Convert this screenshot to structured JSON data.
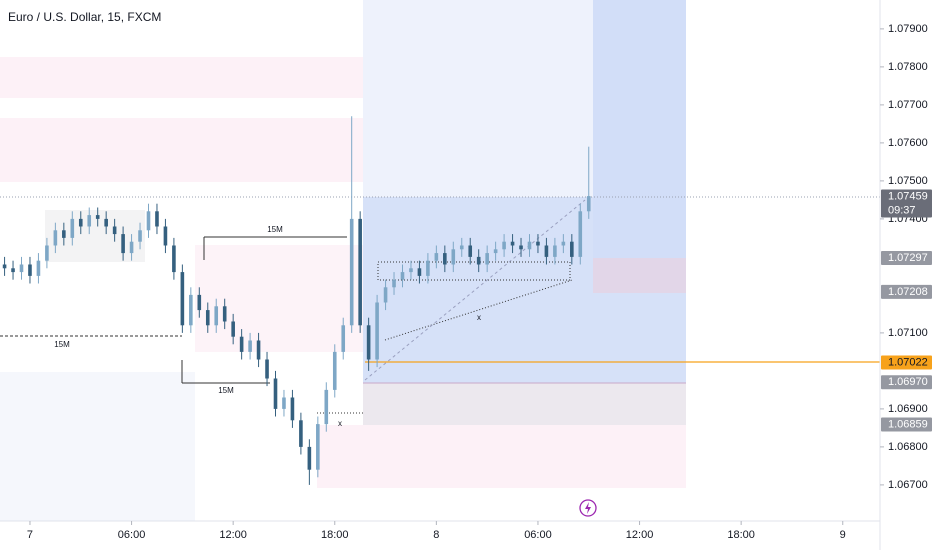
{
  "chart_data": {
    "type": "candlestick",
    "title": "Euro / U.S. Dollar, 15, FXCM",
    "x": [
      -1.5,
      -1,
      -0.5,
      0,
      0.5,
      1,
      1.5,
      2,
      2.5,
      3,
      3.5,
      4,
      4.5,
      5,
      5.5,
      6,
      6.5,
      7,
      7.5,
      8,
      8.5,
      9,
      9.5,
      10,
      10.5,
      11,
      11.5,
      12,
      12.5,
      13,
      13.5,
      14,
      14.5,
      15,
      15.5,
      16,
      16.5,
      17,
      17.5,
      18,
      18.5,
      19,
      19.5,
      20,
      20.5,
      21,
      21.5,
      22,
      22.5,
      23,
      23.5,
      24,
      24.5,
      25,
      25.5,
      26,
      26.5,
      27,
      27.5,
      28,
      28.5,
      29,
      29.5,
      30,
      30.5,
      31,
      31.5,
      32,
      32.5,
      33
    ],
    "open": [
      1.0728,
      1.0727,
      1.0726,
      1.0728,
      1.0725,
      1.0729,
      1.0733,
      1.0737,
      1.0735,
      1.074,
      1.0738,
      1.0741,
      1.074,
      1.0738,
      1.0736,
      1.0731,
      1.0734,
      1.0737,
      1.0742,
      1.0738,
      1.0733,
      1.0726,
      1.0712,
      1.072,
      1.0716,
      1.0712,
      1.0717,
      1.0713,
      1.0709,
      1.0705,
      1.0708,
      1.0703,
      1.0698,
      1.069,
      1.0693,
      1.0687,
      1.068,
      1.0674,
      1.0686,
      1.0695,
      1.0705,
      1.0712,
      1.074,
      1.0712,
      1.0703,
      1.0718,
      1.0722,
      1.0724,
      1.0726,
      1.0727,
      1.0725,
      1.0729,
      1.0731,
      1.0728,
      1.0732,
      1.0733,
      1.073,
      1.0728,
      1.0731,
      1.0732,
      1.0734,
      1.0733,
      1.0732,
      1.0734,
      1.0733,
      1.073,
      1.0733,
      1.0734,
      1.073,
      1.0742
    ],
    "high": [
      1.073,
      1.0729,
      1.073,
      1.073,
      1.0731,
      1.0735,
      1.0739,
      1.0739,
      1.0742,
      1.0742,
      1.0743,
      1.0743,
      1.0742,
      1.074,
      1.0738,
      1.0736,
      1.0739,
      1.0744,
      1.0744,
      1.074,
      1.0735,
      1.0728,
      1.0722,
      1.0722,
      1.0718,
      1.0719,
      1.0719,
      1.0715,
      1.0711,
      1.071,
      1.071,
      1.0705,
      1.07,
      1.0695,
      1.0695,
      1.0689,
      1.0682,
      1.0688,
      1.0697,
      1.0707,
      1.0714,
      1.0767,
      1.0742,
      1.0714,
      1.072,
      1.0724,
      1.0726,
      1.0728,
      1.0729,
      1.0729,
      1.0731,
      1.0733,
      1.0733,
      1.0734,
      1.0735,
      1.0735,
      1.0732,
      1.0733,
      1.0734,
      1.0736,
      1.0736,
      1.0735,
      1.0736,
      1.0736,
      1.0735,
      1.0735,
      1.0736,
      1.0736,
      1.0744,
      1.0759
    ],
    "low": [
      1.0725,
      1.0724,
      1.0724,
      1.0723,
      1.0723,
      1.0727,
      1.0731,
      1.0733,
      1.0733,
      1.0736,
      1.0736,
      1.0738,
      1.0736,
      1.0734,
      1.0729,
      1.0729,
      1.0732,
      1.0735,
      1.0736,
      1.0731,
      1.0724,
      1.071,
      1.071,
      1.0714,
      1.071,
      1.071,
      1.0711,
      1.0707,
      1.0703,
      1.0703,
      1.0701,
      1.0696,
      1.0688,
      1.0688,
      1.0685,
      1.0678,
      1.067,
      1.0672,
      1.0684,
      1.0693,
      1.0703,
      1.071,
      1.071,
      1.07,
      1.0701,
      1.0716,
      1.072,
      1.0722,
      1.0724,
      1.0723,
      1.0723,
      1.0727,
      1.0726,
      1.0726,
      1.073,
      1.0728,
      1.0726,
      1.0726,
      1.0729,
      1.073,
      1.0731,
      1.073,
      1.073,
      1.0731,
      1.0728,
      1.0728,
      1.0731,
      1.0728,
      1.0728,
      1.074
    ],
    "close": [
      1.0727,
      1.0726,
      1.0728,
      1.0725,
      1.0729,
      1.0733,
      1.0737,
      1.0735,
      1.074,
      1.0738,
      1.0741,
      1.074,
      1.0738,
      1.0736,
      1.0731,
      1.0734,
      1.0737,
      1.0742,
      1.0738,
      1.0733,
      1.0726,
      1.0712,
      1.072,
      1.0716,
      1.0712,
      1.0717,
      1.0713,
      1.0709,
      1.0705,
      1.0708,
      1.0703,
      1.0698,
      1.069,
      1.0693,
      1.0687,
      1.068,
      1.0674,
      1.0686,
      1.0695,
      1.0705,
      1.0712,
      1.074,
      1.0712,
      1.0703,
      1.0718,
      1.0722,
      1.0724,
      1.0726,
      1.0727,
      1.0725,
      1.0729,
      1.0731,
      1.0728,
      1.0732,
      1.0733,
      1.073,
      1.0728,
      1.0731,
      1.0732,
      1.0734,
      1.0733,
      1.0732,
      1.0734,
      1.0733,
      1.073,
      1.0733,
      1.0734,
      1.073,
      1.0742,
      1.0746
    ],
    "up_color": "#7ea7c6",
    "down_color": "#35607f",
    "xlim": [
      -1.77,
      50.2
    ],
    "ylim": [
      1.06605,
      1.07976
    ],
    "xticks": [
      {
        "value": 0,
        "label": "7"
      },
      {
        "value": 6,
        "label": "06:00"
      },
      {
        "value": 12,
        "label": "12:00"
      },
      {
        "value": 18,
        "label": "18:00"
      },
      {
        "value": 24,
        "label": "8"
      },
      {
        "value": 30,
        "label": "06:00"
      },
      {
        "value": 36,
        "label": "12:00"
      },
      {
        "value": 42,
        "label": "18:00"
      },
      {
        "value": 48,
        "label": "9"
      }
    ],
    "yticks": [
      {
        "value": 1.067,
        "label": "1.06700"
      },
      {
        "value": 1.068,
        "label": "1.06800"
      },
      {
        "value": 1.069,
        "label": "1.06900"
      },
      {
        "value": 1.071,
        "label": "1.07100"
      },
      {
        "value": 1.074,
        "label": "1.07400"
      },
      {
        "value": 1.075,
        "label": "1.07500"
      },
      {
        "value": 1.076,
        "label": "1.07600"
      },
      {
        "value": 1.077,
        "label": "1.07700"
      },
      {
        "value": 1.078,
        "label": "1.07800"
      },
      {
        "value": 1.079,
        "label": "1.07900"
      }
    ],
    "price_labels": [
      {
        "value": 1.07459,
        "label": "1.07459",
        "color": "#6a6d78"
      },
      {
        "value": 1.07297,
        "label": "1.07297",
        "color": "#9598a1"
      },
      {
        "value": 1.07208,
        "label": "1.07208",
        "color": "#9598a1"
      },
      {
        "value": 1.07022,
        "label": "1.07022",
        "color": "#f7a21b"
      },
      {
        "value": 1.0697,
        "label": "1.06970",
        "color": "#9598a1"
      },
      {
        "value": 1.06859,
        "label": "1.06859",
        "color": "#9598a1"
      }
    ],
    "countdown": "09:37",
    "annotations": [
      "15M",
      "15M",
      "15M",
      "x",
      "x"
    ]
  }
}
